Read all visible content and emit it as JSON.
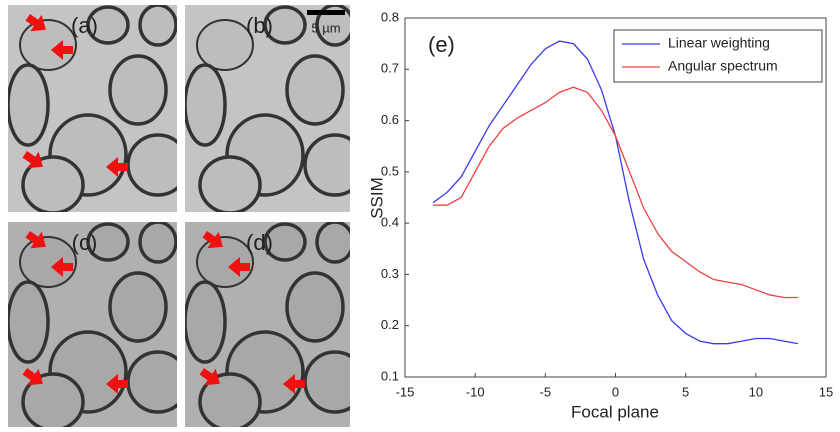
{
  "image_panels": {
    "labels": [
      "(a)",
      "(b)",
      "(c)",
      "(d)"
    ],
    "scale_bar_label": "5 µm"
  },
  "chart_data": {
    "type": "line",
    "annotation": "(e)",
    "x_label": "Focal plane",
    "y_label": "SSIM",
    "x": [
      -13,
      -12,
      -11,
      -10,
      -9,
      -8,
      -7,
      -6,
      -5,
      -4,
      -3,
      -2,
      -1,
      0,
      1,
      2,
      3,
      4,
      5,
      6,
      7,
      8,
      9,
      10,
      11,
      12,
      13
    ],
    "series": [
      {
        "name": "Linear weighting",
        "color": "#3a3af0",
        "values": [
          0.44,
          0.46,
          0.49,
          0.54,
          0.59,
          0.63,
          0.67,
          0.71,
          0.74,
          0.755,
          0.75,
          0.72,
          0.66,
          0.57,
          0.44,
          0.33,
          0.26,
          0.21,
          0.185,
          0.17,
          0.165,
          0.165,
          0.17,
          0.175,
          0.175,
          0.17,
          0.165
        ]
      },
      {
        "name": "Angular spectrum",
        "color": "#f04040",
        "values": [
          0.435,
          0.435,
          0.45,
          0.5,
          0.55,
          0.585,
          0.605,
          0.62,
          0.635,
          0.655,
          0.665,
          0.655,
          0.62,
          0.57,
          0.5,
          0.43,
          0.38,
          0.345,
          0.325,
          0.305,
          0.29,
          0.285,
          0.28,
          0.27,
          0.26,
          0.255,
          0.255
        ]
      }
    ],
    "xlim": [
      -15,
      15
    ],
    "xticks": [
      -15,
      -10,
      -5,
      0,
      5,
      10,
      15
    ],
    "ylim": [
      0.1,
      0.8
    ],
    "yticks": [
      0.1,
      0.2,
      0.3,
      0.4,
      0.5,
      0.6,
      0.7,
      0.8
    ],
    "legend": "top-right"
  }
}
